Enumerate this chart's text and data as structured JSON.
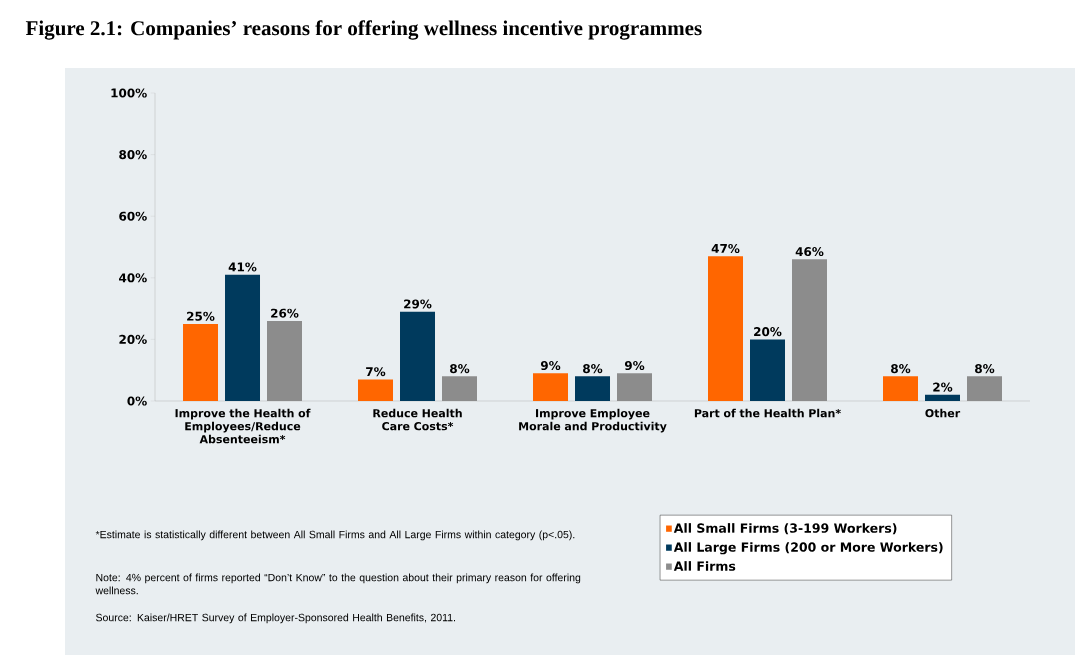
{
  "chart_data": {
    "type": "bar",
    "title": "Figure 2.1: Companies’ reasons for offering wellness incentive programmes",
    "categories": [
      "Improve the Health of Employees/Reduce Absenteeism*",
      "Reduce Health Care Costs*",
      "Improve Employee Morale and Productivity",
      "Part of the Health Plan*",
      "Other"
    ],
    "series": [
      {
        "name": "All Small Firms (3-199 Workers)",
        "color": "#ff6600",
        "values": [
          25,
          7,
          9,
          47,
          8
        ],
        "value_labels": [
          "25%",
          "7%",
          "9%",
          "47%",
          "8%"
        ]
      },
      {
        "name": "All Large Firms (200 or More Workers)",
        "color": "#003a5d",
        "values": [
          41,
          29,
          8,
          20,
          2
        ],
        "value_labels": [
          "41%",
          "29%",
          "8%",
          "20%",
          "2%"
        ]
      },
      {
        "name": "All Firms",
        "color": "#8c8c8c",
        "values": [
          26,
          8,
          9,
          46,
          8
        ],
        "value_labels": [
          "26%",
          "8%",
          "9%",
          "46%",
          "8%"
        ]
      }
    ],
    "ylim": [
      0,
      100
    ],
    "yticks": [
      {
        "value": 0,
        "label": "0%"
      },
      {
        "value": 20,
        "label": "20%"
      },
      {
        "value": 40,
        "label": "40%"
      },
      {
        "value": 60,
        "label": "60%"
      },
      {
        "value": 80,
        "label": "80%"
      },
      {
        "value": 100,
        "label": "100%"
      }
    ],
    "legend": "bottom right",
    "annotations": [
      "*Estimate is statistically different between All Small Firms and All Large Firms within category (p<.05).",
      "Note: 4% percent of firms reported “Don’t Know” to the question about their primary reason for offering wellness.",
      "Source: Kaiser/HRET Survey of Employer-Sponsored Health Benefits, 2011."
    ]
  }
}
